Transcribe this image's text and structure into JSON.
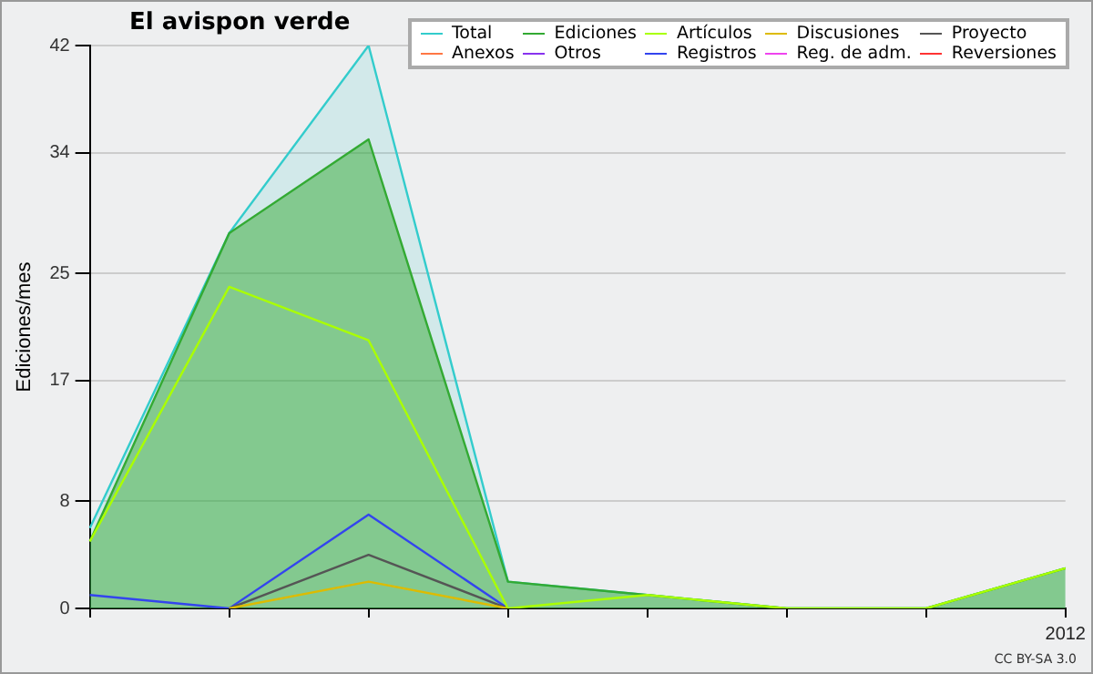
{
  "chart_data": {
    "type": "line",
    "title": "El avispon verde",
    "ylabel": "Ediciones/mes",
    "categories": [
      null,
      null,
      null,
      null,
      null,
      null,
      null,
      "2012"
    ],
    "series": [
      {
        "name": "Total",
        "type": "area",
        "color": "#33cccc",
        "values": [
          6,
          28,
          42,
          2,
          1,
          0,
          0,
          3
        ]
      },
      {
        "name": "Ediciones",
        "type": "area",
        "color": "#33aa33",
        "values": [
          5,
          28,
          35,
          2,
          1,
          0,
          0,
          3
        ]
      },
      {
        "name": "Artículos",
        "color": "#aaff00",
        "values": [
          5,
          24,
          20,
          0,
          1,
          0,
          0,
          3
        ]
      },
      {
        "name": "Discusiones",
        "color": "#ddbb00",
        "values": [
          null,
          0,
          2,
          0,
          null,
          null,
          null,
          null
        ]
      },
      {
        "name": "Proyecto",
        "color": "#555555",
        "values": [
          null,
          0,
          4,
          0,
          null,
          null,
          null,
          null
        ]
      },
      {
        "name": "Anexos",
        "color": "#ff7744",
        "values": [
          null,
          null,
          null,
          null,
          null,
          null,
          null,
          null
        ]
      },
      {
        "name": "Otros",
        "color": "#8833ee",
        "values": [
          null,
          null,
          null,
          null,
          null,
          null,
          null,
          null
        ]
      },
      {
        "name": "Registros",
        "color": "#3344ee",
        "values": [
          1,
          0,
          7,
          0,
          null,
          null,
          null,
          null
        ]
      },
      {
        "name": "Reg. de adm.",
        "color": "#ee44ee",
        "values": [
          null,
          null,
          null,
          null,
          null,
          null,
          null,
          null
        ]
      },
      {
        "name": "Reversiones",
        "color": "#ff3333",
        "values": [
          null,
          null,
          null,
          null,
          null,
          null,
          null,
          null
        ]
      }
    ],
    "ylim": [
      0,
      42
    ],
    "yticks": [
      0,
      8,
      17,
      25,
      34,
      42
    ],
    "grid": "y",
    "legend": "top right",
    "annotations": [
      "CC BY-SA 3.0"
    ]
  }
}
